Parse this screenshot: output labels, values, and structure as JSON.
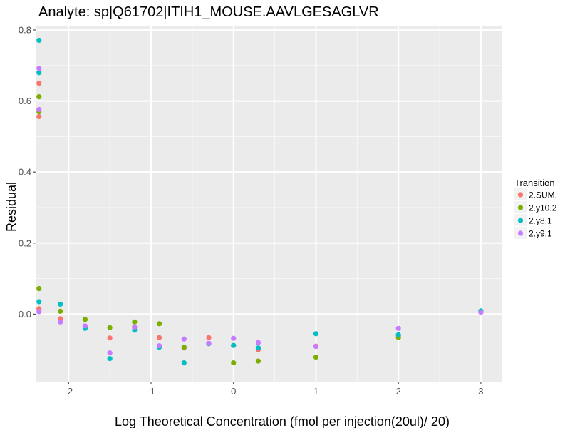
{
  "chart_data": {
    "type": "scatter",
    "title": "Analyte: sp|Q61702|ITIH1_MOUSE.AAVLGESAGLVR",
    "xlabel": "Log Theoretical Concentration (fmol per injection(20ul)/ 20)",
    "ylabel": "Residual",
    "xlim": [
      -2.4,
      3.26
    ],
    "ylim": [
      -0.19,
      0.81
    ],
    "x_ticks": [
      -2,
      -1,
      0,
      1,
      2,
      3
    ],
    "x_tick_labels": [
      "-2",
      "-1",
      "0",
      "1",
      "2",
      "3"
    ],
    "y_ticks": [
      0.0,
      0.2,
      0.4,
      0.6,
      0.8
    ],
    "y_tick_labels": [
      "0.0",
      "0.2",
      "0.4",
      "0.6",
      "0.8"
    ],
    "grid": true,
    "legend": {
      "title": "Transition",
      "position": "right",
      "entries": [
        {
          "name": "2.SUM.",
          "color": "#F8766D"
        },
        {
          "name": "2.y10.2",
          "color": "#7CAE00"
        },
        {
          "name": "2.y8.1",
          "color": "#00BFC4"
        },
        {
          "name": "2.y9.1",
          "color": "#C77CFF"
        }
      ]
    },
    "series": [
      {
        "name": "2.SUM.",
        "color": "#F8766D",
        "points": [
          [
            -2.359,
            0.65
          ],
          [
            -2.359,
            0.556
          ],
          [
            -2.359,
            0.015
          ],
          [
            -2.1,
            -0.013
          ],
          [
            -1.8,
            -0.035
          ],
          [
            -1.5,
            -0.067
          ],
          [
            -1.2,
            -0.038
          ],
          [
            -0.9,
            -0.066
          ],
          [
            -0.6,
            -0.095
          ],
          [
            -0.3,
            -0.066
          ],
          [
            0.0,
            -0.088
          ],
          [
            0.3,
            -0.1
          ],
          [
            1.0,
            -0.09
          ],
          [
            2.0,
            -0.06
          ],
          [
            3.0,
            0.008
          ]
        ]
      },
      {
        "name": "2.y10.2",
        "color": "#7CAE00",
        "points": [
          [
            -2.359,
            0.612
          ],
          [
            -2.359,
            0.57
          ],
          [
            -2.359,
            0.072
          ],
          [
            -2.1,
            0.008
          ],
          [
            -1.8,
            -0.015
          ],
          [
            -1.5,
            -0.038
          ],
          [
            -1.2,
            -0.022
          ],
          [
            -0.9,
            -0.027
          ],
          [
            -0.6,
            -0.093
          ],
          [
            -0.3,
            -0.083
          ],
          [
            0.0,
            -0.137
          ],
          [
            0.3,
            -0.132
          ],
          [
            1.0,
            -0.121
          ],
          [
            2.0,
            -0.066
          ],
          [
            3.0,
            0.007
          ]
        ]
      },
      {
        "name": "2.y8.1",
        "color": "#00BFC4",
        "points": [
          [
            -2.359,
            0.771
          ],
          [
            -2.359,
            0.68
          ],
          [
            -2.359,
            0.035
          ],
          [
            -2.1,
            0.028
          ],
          [
            -1.8,
            -0.04
          ],
          [
            -1.5,
            -0.125
          ],
          [
            -1.2,
            -0.045
          ],
          [
            -0.9,
            -0.093
          ],
          [
            -0.6,
            -0.137
          ],
          [
            -0.3,
            -0.083
          ],
          [
            0.0,
            -0.088
          ],
          [
            0.3,
            -0.095
          ],
          [
            1.0,
            -0.055
          ],
          [
            2.0,
            -0.058
          ],
          [
            3.0,
            0.009
          ]
        ]
      },
      {
        "name": "2.y9.1",
        "color": "#C77CFF",
        "points": [
          [
            -2.359,
            0.692
          ],
          [
            -2.359,
            0.576
          ],
          [
            -2.359,
            0.007
          ],
          [
            -2.1,
            -0.022
          ],
          [
            -1.8,
            -0.033
          ],
          [
            -1.5,
            -0.109
          ],
          [
            -1.2,
            -0.036
          ],
          [
            -0.9,
            -0.089
          ],
          [
            -0.6,
            -0.07
          ],
          [
            -0.3,
            -0.082
          ],
          [
            0.0,
            -0.068
          ],
          [
            0.3,
            -0.08
          ],
          [
            1.0,
            -0.091
          ],
          [
            2.0,
            -0.04
          ],
          [
            3.0,
            0.005
          ]
        ]
      }
    ]
  }
}
